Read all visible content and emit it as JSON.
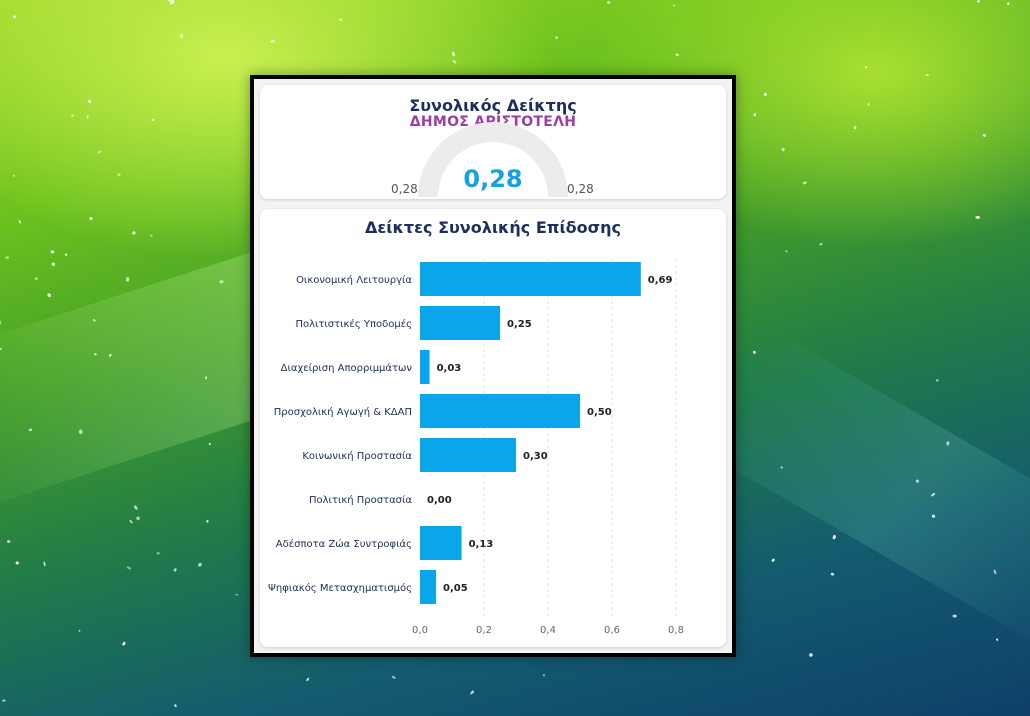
{
  "gauge": {
    "title": "Συνολικός Δείκτης",
    "subtitle": "ΔΗΜΟΣ ΑΡΙΣΤΟΤΕΛΗ",
    "value_label": "0,28",
    "min_label": "0,28",
    "max_label": "0,28",
    "value": 0.28,
    "min": 0.28,
    "max": 0.28
  },
  "colors": {
    "bar": "#0aa6ec",
    "title": "#1b2e5e",
    "subtitle": "#9b3fa3",
    "gauge_track": "#ececec"
  },
  "chart_data": {
    "type": "bar",
    "orientation": "horizontal",
    "title": "Δείκτες Συνολικής Επίδοσης",
    "categories": [
      "Οικονομική Λειτουργία",
      "Πολιτιστικές Υποδομές",
      "Διαχείριση Απορριμμάτων",
      "Προσχολική Αγωγή & ΚΔΑΠ",
      "Κοινωνική Προστασία",
      "Πολιτική Προστασία",
      "Αδέσποτα Ζώα Συντροφιάς",
      "Ψηφιακός Μετασχηματισμός"
    ],
    "values": [
      0.69,
      0.25,
      0.03,
      0.5,
      0.3,
      0.0,
      0.13,
      0.05
    ],
    "value_labels": [
      "0,69",
      "0,25",
      "0,03",
      "0,50",
      "0,30",
      "0,00",
      "0,13",
      "0,05"
    ],
    "xticks": [
      0,
      0.2,
      0.4,
      0.6,
      0.8
    ],
    "xtick_labels": [
      "0,0",
      "0,2",
      "0,4",
      "0,6",
      "0,8"
    ],
    "xlim": [
      0,
      0.8
    ],
    "xlabel": "",
    "ylabel": "",
    "grid": true
  }
}
